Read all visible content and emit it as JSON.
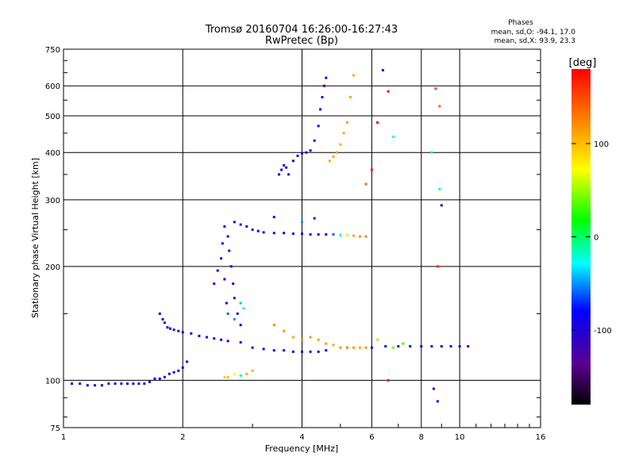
{
  "header": {
    "title_line1": "Tromsø 20160704 16:26:00-16:27:43",
    "title_line2": "RwPretec (Bp)",
    "phases_title": "Phases",
    "phases_o": "mean, sd,O: -94.1, 17.0",
    "phases_x": "mean, sd,X:  93.9, 23.3"
  },
  "chart_data": {
    "type": "scatter",
    "title": "Tromsø 20160704 16:26:00-16:27:43",
    "subtitle": "RwPretec (Bp)",
    "xlabel": "Frequency [MHz]",
    "ylabel": "Stationary phase Virtual Height [km]",
    "x_scale": "log",
    "y_scale": "log",
    "xlim": [
      1,
      16
    ],
    "ylim": [
      75,
      750
    ],
    "x_ticks": [
      1,
      2,
      4,
      6,
      8,
      10,
      16
    ],
    "y_ticks": [
      75,
      100,
      200,
      300,
      400,
      500,
      600,
      750
    ],
    "grid": true,
    "colorbar": {
      "label": "[deg]",
      "range": [
        -180,
        180
      ],
      "ticks": [
        100,
        0,
        -100
      ],
      "colormap": "rainbow"
    },
    "series": [
      {
        "points": [
          [
            1.05,
            98,
            -94
          ],
          [
            1.1,
            98,
            -95
          ],
          [
            1.15,
            97,
            -93
          ],
          [
            1.2,
            97,
            -96
          ],
          [
            1.25,
            97,
            -94
          ],
          [
            1.3,
            98,
            -95
          ],
          [
            1.35,
            98,
            -92
          ],
          [
            1.4,
            98,
            -94
          ],
          [
            1.45,
            98,
            -97
          ],
          [
            1.5,
            98,
            -93
          ],
          [
            1.55,
            98,
            -95
          ],
          [
            1.6,
            98,
            -94
          ],
          [
            1.65,
            99,
            -96
          ],
          [
            1.7,
            101,
            -93
          ],
          [
            1.75,
            101,
            -95
          ],
          [
            1.8,
            102,
            -94
          ],
          [
            1.85,
            104,
            -96
          ],
          [
            1.9,
            105,
            -92
          ],
          [
            1.95,
            106,
            -95
          ],
          [
            2.0,
            108,
            -94
          ],
          [
            2.05,
            112,
            -93
          ],
          [
            1.75,
            150,
            -95
          ],
          [
            1.78,
            145,
            -92
          ],
          [
            1.8,
            142,
            -96
          ],
          [
            1.83,
            138,
            -94
          ],
          [
            1.86,
            137,
            -93
          ],
          [
            1.9,
            136,
            -95
          ],
          [
            1.95,
            135,
            -94
          ],
          [
            2.0,
            134,
            -96
          ],
          [
            2.1,
            133,
            -92
          ],
          [
            2.2,
            131,
            -95
          ],
          [
            2.3,
            130,
            -94
          ],
          [
            2.4,
            129,
            -93
          ],
          [
            2.5,
            128,
            -96
          ],
          [
            2.6,
            127,
            -95
          ],
          [
            2.8,
            126,
            -94
          ],
          [
            3.0,
            122,
            -93
          ],
          [
            3.2,
            121,
            -95
          ],
          [
            3.4,
            120,
            -94
          ],
          [
            3.6,
            120,
            -92
          ],
          [
            3.8,
            119,
            -95
          ],
          [
            4.0,
            119,
            -94
          ],
          [
            4.2,
            119,
            -96
          ],
          [
            4.4,
            119,
            -93
          ],
          [
            4.6,
            120,
            -95
          ],
          [
            2.4,
            180,
            -95
          ],
          [
            2.45,
            195,
            -93
          ],
          [
            2.5,
            210,
            -94
          ],
          [
            2.52,
            230,
            -96
          ],
          [
            2.55,
            255,
            -94
          ],
          [
            2.6,
            240,
            -92
          ],
          [
            2.62,
            220,
            -95
          ],
          [
            2.65,
            200,
            -94
          ],
          [
            2.68,
            180,
            -93
          ],
          [
            2.7,
            165,
            -96
          ],
          [
            2.75,
            150,
            -94
          ],
          [
            2.8,
            140,
            -92
          ],
          [
            2.55,
            185,
            -95
          ],
          [
            2.58,
            160,
            -94
          ],
          [
            2.6,
            150,
            -60
          ],
          [
            2.7,
            145,
            -50
          ],
          [
            2.8,
            160,
            -40
          ],
          [
            2.85,
            155,
            -30
          ],
          [
            2.7,
            262,
            -94
          ],
          [
            2.8,
            258,
            -95
          ],
          [
            2.9,
            255,
            -93
          ],
          [
            3.0,
            250,
            -96
          ],
          [
            3.1,
            248,
            -94
          ],
          [
            3.2,
            246,
            -92
          ],
          [
            3.4,
            245,
            -95
          ],
          [
            3.6,
            245,
            -94
          ],
          [
            3.8,
            244,
            -93
          ],
          [
            4.0,
            244,
            -96
          ],
          [
            4.2,
            243,
            -94
          ],
          [
            4.4,
            243,
            -95
          ],
          [
            4.6,
            243,
            -92
          ],
          [
            4.8,
            243,
            -60
          ],
          [
            5.0,
            242,
            -20
          ],
          [
            5.2,
            242,
            60
          ],
          [
            5.4,
            241,
            110
          ],
          [
            5.6,
            240,
            120
          ],
          [
            5.8,
            240,
            125
          ],
          [
            3.4,
            270,
            -95
          ],
          [
            4.0,
            262,
            -50
          ],
          [
            4.3,
            268,
            -94
          ],
          [
            3.5,
            350,
            -94
          ],
          [
            3.55,
            360,
            -95
          ],
          [
            3.6,
            370,
            -93
          ],
          [
            3.65,
            365,
            -96
          ],
          [
            3.7,
            350,
            -94
          ],
          [
            3.8,
            380,
            -92
          ],
          [
            3.9,
            392,
            -95
          ],
          [
            4.0,
            398,
            -94
          ],
          [
            4.1,
            400,
            -93
          ],
          [
            4.2,
            405,
            -96
          ],
          [
            4.3,
            430,
            -94
          ],
          [
            4.4,
            470,
            -95
          ],
          [
            4.45,
            520,
            -93
          ],
          [
            4.5,
            560,
            -96
          ],
          [
            4.55,
            600,
            -94
          ],
          [
            4.6,
            630,
            -95
          ],
          [
            4.7,
            380,
            110
          ],
          [
            4.8,
            390,
            112
          ],
          [
            4.9,
            400,
            115
          ],
          [
            5.0,
            420,
            108
          ],
          [
            5.1,
            450,
            110
          ],
          [
            5.2,
            480,
            113
          ],
          [
            5.3,
            560,
            111
          ],
          [
            5.4,
            640,
            109
          ],
          [
            3.4,
            140,
            120
          ],
          [
            3.6,
            135,
            115
          ],
          [
            3.8,
            130,
            110
          ],
          [
            4.0,
            128,
            118
          ],
          [
            4.2,
            130,
            120
          ],
          [
            4.4,
            128,
            112
          ],
          [
            4.6,
            125,
            115
          ],
          [
            4.8,
            124,
            110
          ],
          [
            5.0,
            122,
            118
          ],
          [
            5.2,
            122,
            125
          ],
          [
            5.4,
            122,
            115
          ],
          [
            5.6,
            122,
            112
          ],
          [
            5.8,
            122,
            120
          ],
          [
            6.0,
            122,
            -95
          ],
          [
            6.5,
            123,
            -94
          ],
          [
            7.0,
            123,
            -93
          ],
          [
            7.5,
            123,
            -96
          ],
          [
            8.0,
            123,
            -94
          ],
          [
            8.5,
            123,
            -95
          ],
          [
            9.0,
            123,
            -93
          ],
          [
            9.5,
            123,
            -94
          ],
          [
            10.0,
            123,
            -95
          ],
          [
            10.5,
            123,
            -94
          ],
          [
            2.55,
            102,
            95
          ],
          [
            2.6,
            102,
            100
          ],
          [
            2.7,
            104,
            70
          ],
          [
            2.8,
            103,
            -10
          ],
          [
            2.9,
            104,
            110
          ],
          [
            3.0,
            106,
            105
          ],
          [
            6.2,
            128,
            50
          ],
          [
            6.8,
            122,
            40
          ],
          [
            7.2,
            125,
            30
          ],
          [
            6.6,
            580,
            170
          ],
          [
            6.4,
            660,
            -95
          ],
          [
            8.7,
            590,
            150
          ],
          [
            8.9,
            530,
            140
          ],
          [
            8.8,
            200,
            160
          ],
          [
            8.5,
            400,
            -10
          ],
          [
            8.9,
            320,
            -20
          ],
          [
            9.0,
            290,
            -95
          ],
          [
            8.6,
            95,
            -95
          ],
          [
            8.8,
            88,
            -95
          ],
          [
            6.2,
            480,
            180
          ],
          [
            6.0,
            360,
            170
          ],
          [
            5.8,
            330,
            140
          ],
          [
            6.8,
            440,
            -20
          ],
          [
            6.6,
            100,
            170
          ]
        ]
      }
    ]
  }
}
